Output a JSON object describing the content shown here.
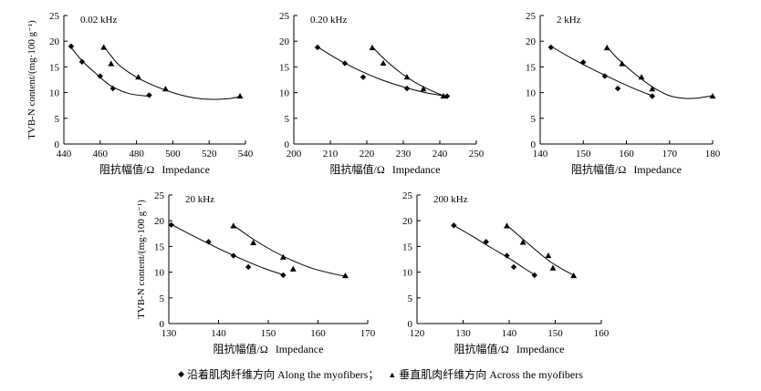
{
  "figure": {
    "ylabel": "TVB-N content/(mg·100 g⁻¹)",
    "xlabel_cn": "阻抗幅值/Ω",
    "xlabel_en": "Impedance"
  },
  "legend": {
    "along_marker": "◆",
    "along_label": "沿着肌肉纤维方向 Along the myofibers；",
    "across_marker": "▲",
    "across_label": "垂直肌肉纤维方向 Across the myofibers"
  },
  "chart_data": [
    {
      "type": "scatter",
      "title": "0.02 kHz",
      "xlabel": "阻抗幅值/Ω Impedance",
      "ylabel": "TVB-N content/(mg·100 g⁻¹)",
      "xlim": [
        440,
        540
      ],
      "ylim": [
        0,
        25
      ],
      "xticks": [
        440,
        460,
        480,
        500,
        520,
        540
      ],
      "yticks": [
        0,
        5,
        10,
        15,
        20,
        25
      ],
      "series": [
        {
          "name": "Along the myofibers",
          "marker": "diamond",
          "points": [
            [
              444,
              19
            ],
            [
              450,
              16
            ],
            [
              460,
              13.2
            ],
            [
              467,
              10.8
            ],
            [
              487,
              9.5
            ]
          ],
          "trend": [
            [
              443,
              19.2
            ],
            [
              450,
              16.2
            ],
            [
              458,
              13.6
            ],
            [
              466,
              11.3
            ],
            [
              476,
              9.8
            ],
            [
              487,
              9.3
            ]
          ]
        },
        {
          "name": "Across the myofibers",
          "marker": "triangle",
          "points": [
            [
              462,
              18.8
            ],
            [
              466,
              15.6
            ],
            [
              481,
              13
            ],
            [
              496,
              10.7
            ],
            [
              537,
              9.3
            ]
          ],
          "trend": [
            [
              462,
              19
            ],
            [
              470,
              15.5
            ],
            [
              480,
              13
            ],
            [
              490,
              11.3
            ],
            [
              500,
              10
            ],
            [
              510,
              9.1
            ],
            [
              520,
              8.7
            ],
            [
              530,
              8.8
            ],
            [
              537,
              9.2
            ]
          ]
        }
      ]
    },
    {
      "type": "scatter",
      "title": "0.20 kHz",
      "xlabel": "阻抗幅值/Ω Impedance",
      "ylabel": "",
      "xlim": [
        200,
        250
      ],
      "ylim": [
        0,
        25
      ],
      "xticks": [
        200,
        210,
        220,
        230,
        240,
        250
      ],
      "yticks": [
        0,
        5,
        10,
        15,
        20,
        25
      ],
      "series": [
        {
          "name": "Along the myofibers",
          "marker": "diamond",
          "points": [
            [
              206.5,
              18.8
            ],
            [
              214,
              15.7
            ],
            [
              219,
              13
            ],
            [
              231,
              10.8
            ],
            [
              242,
              9.3
            ]
          ],
          "trend": [
            [
              206.5,
              18.9
            ],
            [
              212,
              16.5
            ],
            [
              218,
              14.3
            ],
            [
              224,
              12.5
            ],
            [
              230,
              11.1
            ],
            [
              236,
              10
            ],
            [
              242,
              9.3
            ]
          ]
        },
        {
          "name": "Across the myofibers",
          "marker": "triangle",
          "points": [
            [
              221.5,
              18.7
            ],
            [
              224.5,
              15.7
            ],
            [
              231,
              13
            ],
            [
              235.5,
              10.7
            ],
            [
              241,
              9.3
            ]
          ],
          "trend": [
            [
              221.5,
              18.9
            ],
            [
              225,
              16.4
            ],
            [
              229,
              14
            ],
            [
              233,
              12.1
            ],
            [
              237,
              10.6
            ],
            [
              241,
              9.4
            ]
          ]
        }
      ]
    },
    {
      "type": "scatter",
      "title": "2 kHz",
      "xlabel": "阻抗幅值/Ω Impedance",
      "ylabel": "",
      "xlim": [
        140,
        180
      ],
      "ylim": [
        0,
        25
      ],
      "xticks": [
        140,
        150,
        160,
        170,
        180
      ],
      "yticks": [
        0,
        5,
        10,
        15,
        20,
        25
      ],
      "series": [
        {
          "name": "Along the myofibers",
          "marker": "diamond",
          "points": [
            [
              142.5,
              18.8
            ],
            [
              150,
              15.9
            ],
            [
              155,
              13.2
            ],
            [
              158,
              10.8
            ],
            [
              166,
              9.3
            ]
          ],
          "trend": [
            [
              142.5,
              19
            ],
            [
              147,
              16.8
            ],
            [
              152,
              14.6
            ],
            [
              157,
              12.6
            ],
            [
              162,
              10.7
            ],
            [
              166,
              9.4
            ]
          ]
        },
        {
          "name": "Across the myofibers",
          "marker": "triangle",
          "points": [
            [
              155.5,
              18.7
            ],
            [
              159,
              15.6
            ],
            [
              163.5,
              13
            ],
            [
              166,
              10.7
            ],
            [
              180,
              9.3
            ]
          ],
          "trend": [
            [
              155.5,
              18.9
            ],
            [
              158,
              16.6
            ],
            [
              161,
              14.3
            ],
            [
              164,
              12.3
            ],
            [
              167,
              10.6
            ],
            [
              170,
              9.4
            ],
            [
              173,
              8.9
            ],
            [
              176,
              8.9
            ],
            [
              180,
              9.4
            ]
          ]
        }
      ]
    },
    {
      "type": "scatter",
      "title": "20 kHz",
      "xlabel": "阻抗幅值/Ω Impedance",
      "ylabel": "TVB-N content/(mg·100 g⁻¹)",
      "xlim": [
        130,
        170
      ],
      "ylim": [
        0,
        25
      ],
      "xticks": [
        130,
        140,
        150,
        160,
        170
      ],
      "yticks": [
        0,
        5,
        10,
        15,
        20,
        25
      ],
      "series": [
        {
          "name": "Along the myofibers",
          "marker": "diamond",
          "points": [
            [
              130.5,
              19.2
            ],
            [
              138,
              15.9
            ],
            [
              143,
              13.2
            ],
            [
              146,
              11
            ],
            [
              153,
              9.4
            ]
          ],
          "trend": [
            [
              130.5,
              19.3
            ],
            [
              135,
              17
            ],
            [
              140,
              14.6
            ],
            [
              145,
              12.4
            ],
            [
              149,
              10.8
            ],
            [
              153,
              9.5
            ]
          ]
        },
        {
          "name": "Across the myofibers",
          "marker": "triangle",
          "points": [
            [
              143,
              19
            ],
            [
              147,
              15.7
            ],
            [
              153,
              12.9
            ],
            [
              155,
              10.6
            ],
            [
              165.5,
              9.3
            ]
          ],
          "trend": [
            [
              143,
              19.1
            ],
            [
              147,
              16.4
            ],
            [
              151,
              14.1
            ],
            [
              155,
              12.2
            ],
            [
              159,
              10.7
            ],
            [
              163,
              9.7
            ],
            [
              165.5,
              9.2
            ]
          ]
        }
      ]
    },
    {
      "type": "scatter",
      "title": "200 kHz",
      "xlabel": "阻抗幅值/Ω Impedance",
      "ylabel": "",
      "xlim": [
        120,
        160
      ],
      "ylim": [
        0,
        25
      ],
      "xticks": [
        120,
        130,
        140,
        150,
        160
      ],
      "yticks": [
        0,
        5,
        10,
        15,
        20,
        25
      ],
      "series": [
        {
          "name": "Along the myofibers",
          "marker": "diamond",
          "points": [
            [
              128,
              19.1
            ],
            [
              135,
              15.9
            ],
            [
              139.5,
              13.2
            ],
            [
              141,
              11
            ],
            [
              145.5,
              9.4
            ]
          ],
          "trend": [
            [
              128,
              19.1
            ],
            [
              132,
              17
            ],
            [
              136,
              14.8
            ],
            [
              140,
              12.7
            ],
            [
              143,
              10.9
            ],
            [
              145.5,
              9.5
            ]
          ]
        },
        {
          "name": "Across the myofibers",
          "marker": "triangle",
          "points": [
            [
              139.5,
              19
            ],
            [
              143,
              15.8
            ],
            [
              148.5,
              13.2
            ],
            [
              149.5,
              10.8
            ],
            [
              154,
              9.3
            ]
          ],
          "trend": [
            [
              139.5,
              19.1
            ],
            [
              142.5,
              16.8
            ],
            [
              145.5,
              14.5
            ],
            [
              148.5,
              12.3
            ],
            [
              151.5,
              10.6
            ],
            [
              154,
              9.4
            ]
          ]
        }
      ]
    }
  ]
}
